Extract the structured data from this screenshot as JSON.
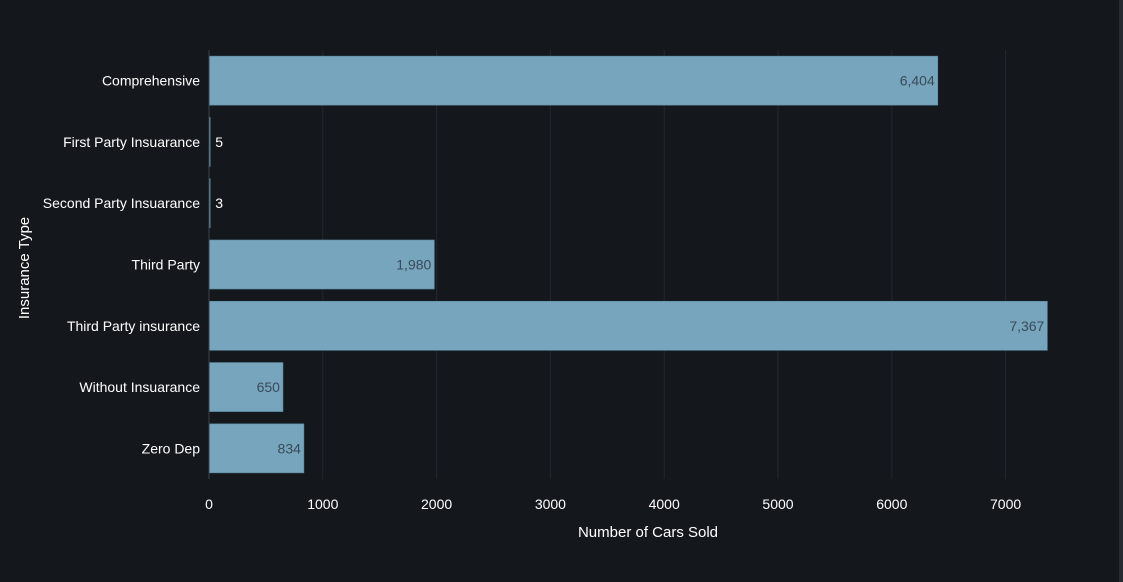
{
  "chart_data": {
    "type": "bar",
    "orientation": "horizontal",
    "categories": [
      "Comprehensive",
      "First Party Insuarance",
      "Second Party Insuarance",
      "Third Party",
      "Third Party insurance",
      "Without Insuarance",
      "Zero Dep"
    ],
    "values": [
      6404,
      5,
      3,
      1980,
      7367,
      650,
      834
    ],
    "value_labels": [
      "6,404",
      "5",
      "3",
      "1,980",
      "7,367",
      "650",
      "834"
    ],
    "xlabel": "Number of Cars Sold",
    "ylabel": "Insurance Type",
    "xticks": [
      0,
      1000,
      2000,
      3000,
      4000,
      5000,
      6000,
      7000
    ],
    "xlim": [
      0,
      7500
    ],
    "grid": "vertical",
    "legend": "none",
    "colors": {
      "background": "#14171c",
      "bar": "#76a5bd",
      "bar_outline": "#5d8aa3",
      "text": "#ffffff",
      "label_inside": "#3a4a57",
      "grid": "#222730",
      "axis": "#3b414a"
    }
  }
}
